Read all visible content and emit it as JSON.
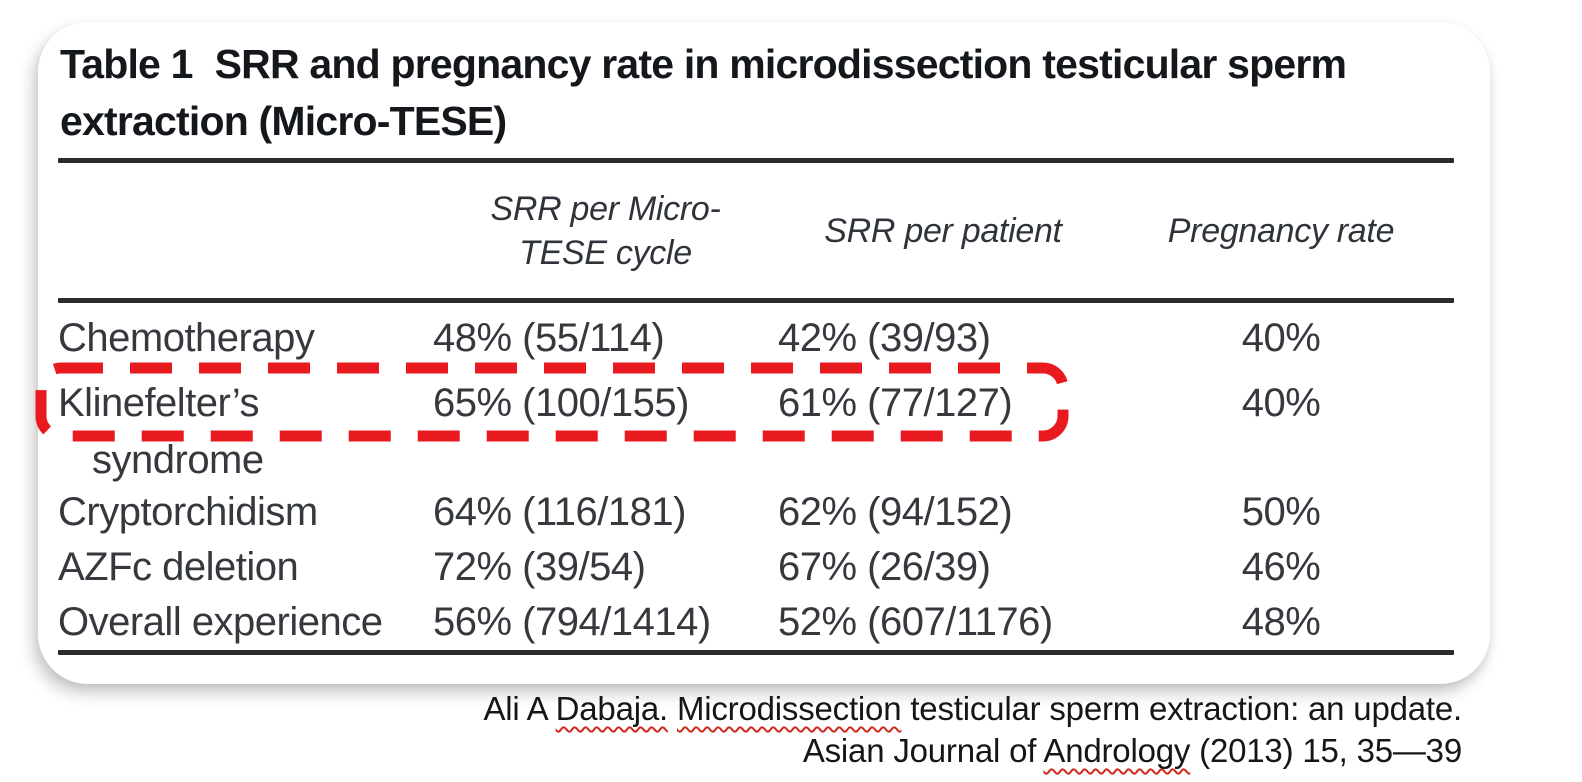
{
  "colors": {
    "highlight_red": "#e8191f",
    "squiggle_red": "#cf2a20",
    "rule_dark": "#2c2c2e",
    "title_text": "#14171b",
    "body_text": "#35393e"
  },
  "table": {
    "title_label": "Table 1",
    "title_line1": "SRR and pregnancy rate in microdissection testicular sperm",
    "title_line2": "extraction (Micro-TESE)",
    "headers": {
      "srr_per_cycle": "SRR per Micro-TESE cycle",
      "srr_per_patient": "SRR per patient",
      "pregnancy_rate": "Pregnancy rate"
    },
    "rows": [
      {
        "condition": "Chemotherapy",
        "srr_per_cycle": "48% (55/114)",
        "srr_per_patient": "42% (39/93)",
        "pregnancy_rate": "40%",
        "highlighted": false
      },
      {
        "condition": "Klinefelter’s syndrome",
        "condition_line1": "Klinefelter’s",
        "condition_line2": "syndrome",
        "srr_per_cycle": "65% (100/155)",
        "srr_per_patient": "61% (77/127)",
        "pregnancy_rate": "40%",
        "highlighted": true
      },
      {
        "condition": "Cryptorchidism",
        "srr_per_cycle": "64% (116/181)",
        "srr_per_patient": "62% (94/152)",
        "pregnancy_rate": "50%",
        "highlighted": false
      },
      {
        "condition": "AZFc deletion",
        "srr_per_cycle": "72% (39/54)",
        "srr_per_patient": "67% (26/39)",
        "pregnancy_rate": "46%",
        "highlighted": false
      },
      {
        "condition": "Overall experience",
        "srr_per_cycle": "56% (794/1414)",
        "srr_per_patient": "52% (607/1176)",
        "pregnancy_rate": "48%",
        "highlighted": false
      }
    ]
  },
  "citation": {
    "line1": [
      {
        "text": "Ali A ",
        "wavy": false
      },
      {
        "text": "Dabaja.",
        "wavy": true
      },
      {
        "text": " ",
        "wavy": false
      },
      {
        "text": "Microdissection",
        "wavy": true
      },
      {
        "text": " testicular sperm extraction: an update.",
        "wavy": false
      }
    ],
    "line2": [
      {
        "text": "Asian Journal of ",
        "wavy": false
      },
      {
        "text": "Andrology",
        "wavy": true
      },
      {
        "text": " (2013) 15, 35—39",
        "wavy": false
      }
    ]
  }
}
